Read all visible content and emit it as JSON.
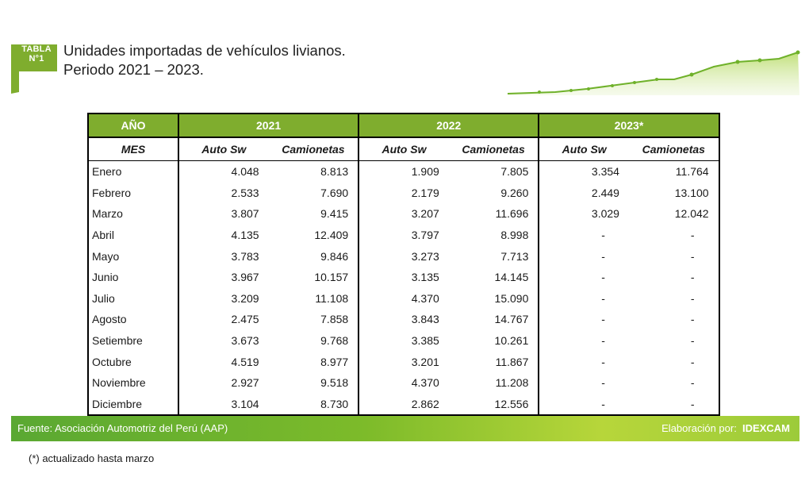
{
  "header": {
    "badge_line1": "TABLA",
    "badge_line2": "N°1",
    "title_line1": "Unidades importadas de vehículos livianos.",
    "title_line2": "Periodo 2021 – 2023."
  },
  "table": {
    "col_year": "AÑO",
    "col_mes": "MES",
    "years": [
      "2021",
      "2022",
      "2023*"
    ],
    "sub_auto": "Auto Sw",
    "sub_cam": "Camionetas",
    "rows": [
      {
        "mes": "Enero",
        "a21": "4.048",
        "c21": "8.813",
        "a22": "1.909",
        "c22": "7.805",
        "a23": "3.354",
        "c23": "11.764"
      },
      {
        "mes": "Febrero",
        "a21": "2.533",
        "c21": "7.690",
        "a22": "2.179",
        "c22": "9.260",
        "a23": "2.449",
        "c23": "13.100"
      },
      {
        "mes": "Marzo",
        "a21": "3.807",
        "c21": "9.415",
        "a22": "3.207",
        "c22": "11.696",
        "a23": "3.029",
        "c23": "12.042"
      },
      {
        "mes": "Abril",
        "a21": "4.135",
        "c21": "12.409",
        "a22": "3.797",
        "c22": "8.998",
        "a23": "-",
        "c23": "-"
      },
      {
        "mes": "Mayo",
        "a21": "3.783",
        "c21": "9.846",
        "a22": "3.273",
        "c22": "7.713",
        "a23": "-",
        "c23": "-"
      },
      {
        "mes": "Junio",
        "a21": "3.967",
        "c21": "10.157",
        "a22": "3.135",
        "c22": "14.145",
        "a23": "-",
        "c23": "-"
      },
      {
        "mes": "Julio",
        "a21": "3.209",
        "c21": "11.108",
        "a22": "4.370",
        "c22": "15.090",
        "a23": "-",
        "c23": "-"
      },
      {
        "mes": "Agosto",
        "a21": "2.475",
        "c21": "7.858",
        "a22": "3.843",
        "c22": "14.767",
        "a23": "-",
        "c23": "-"
      },
      {
        "mes": "Setiembre",
        "a21": "3.673",
        "c21": "9.768",
        "a22": "3.385",
        "c22": "10.261",
        "a23": "-",
        "c23": "-"
      },
      {
        "mes": "Octubre",
        "a21": "4.519",
        "c21": "8.977",
        "a22": "3.201",
        "c22": "11.867",
        "a23": "-",
        "c23": "-"
      },
      {
        "mes": "Noviembre",
        "a21": "2.927",
        "c21": "9.518",
        "a22": "4.370",
        "c22": "11.208",
        "a23": "-",
        "c23": "-"
      },
      {
        "mes": "Diciembre",
        "a21": "3.104",
        "c21": "8.730",
        "a22": "2.862",
        "c22": "12.556",
        "a23": "-",
        "c23": "-"
      }
    ]
  },
  "footer": {
    "source_label": "Fuente:",
    "source_value": "Asociación Automotriz del Perú (AAP)",
    "elab_label": "Elaboración por:",
    "elab_value": "IDEXCAM"
  },
  "note": "(*) actualizado hasta marzo",
  "colors": {
    "green": "#7fad2e",
    "accent": "#9ccb3a"
  }
}
